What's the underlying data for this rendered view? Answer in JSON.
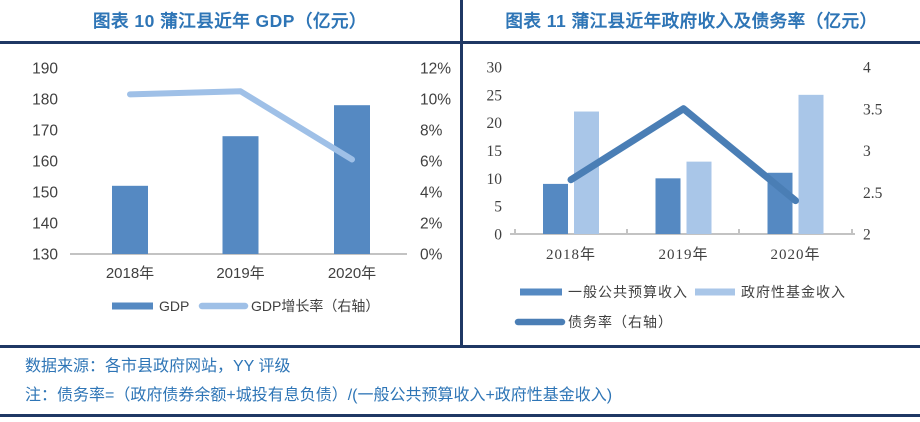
{
  "footer": {
    "source": "数据来源：各市县政府网站，YY 评级",
    "note": "注：债务率=（政府债券余额+城投有息负债）/(一般公共预算收入+政府性基金收入)"
  },
  "colors": {
    "title_blue": "#2E75B6",
    "navy_rule": "#1F3864",
    "footer_text": "#2E75B6",
    "axis_line": "#C3C3C3",
    "tick_text": "#404040",
    "bar_dark_blue": "#5589C2",
    "bar_light_blue": "#A9C6E8",
    "line_light_blue": "#9FC0E7",
    "line_dark_blue": "#4A7EB5"
  },
  "chart_data": [
    {
      "type": "bar",
      "title": "图表 10 蒲江县近年 GDP（亿元）",
      "categories": [
        "2018年",
        "2019年",
        "2020年"
      ],
      "series": [
        {
          "name": "GDP",
          "kind": "bar",
          "axis": "left",
          "color": "#5589C2",
          "values": [
            152,
            168,
            178
          ]
        },
        {
          "name": "GDP增长率（右轴）",
          "kind": "line",
          "axis": "right",
          "color": "#9FC0E7",
          "unit": "%",
          "values": [
            10.3,
            10.5,
            6.1
          ]
        }
      ],
      "left_axis": {
        "min": 130,
        "max": 190,
        "step": 10,
        "tick_labels": [
          "190",
          "180",
          "170",
          "160",
          "150",
          "140",
          "130"
        ]
      },
      "right_axis": {
        "min": 0,
        "max": 12,
        "step": 2,
        "tick_labels": [
          "12%",
          "10%",
          "8%",
          "6%",
          "4%",
          "2%",
          "0%"
        ]
      },
      "grid": false,
      "legend_position": "bottom"
    },
    {
      "type": "bar",
      "title": "图表 11 蒲江县近年政府收入及债务率（亿元）",
      "categories": [
        "2018年",
        "2019年",
        "2020年"
      ],
      "series": [
        {
          "name": "一般公共预算收入",
          "kind": "bar",
          "axis": "left",
          "color": "#5589C2",
          "values": [
            9,
            10,
            11
          ]
        },
        {
          "name": "政府性基金收入",
          "kind": "bar",
          "axis": "left",
          "color": "#A9C6E8",
          "values": [
            22,
            13,
            25
          ]
        },
        {
          "name": "债务率（右轴）",
          "kind": "line",
          "axis": "right",
          "color": "#4A7EB5",
          "values": [
            2.65,
            3.5,
            2.4
          ]
        }
      ],
      "left_axis": {
        "min": 0,
        "max": 30,
        "step": 5,
        "tick_labels": [
          "30",
          "25",
          "20",
          "15",
          "10",
          "5",
          "0"
        ]
      },
      "right_axis": {
        "min": 2,
        "max": 4,
        "step": 0.5,
        "tick_labels": [
          "4",
          "3.5",
          "3",
          "2.5",
          "2"
        ]
      },
      "grid": false,
      "legend_position": "bottom"
    }
  ]
}
